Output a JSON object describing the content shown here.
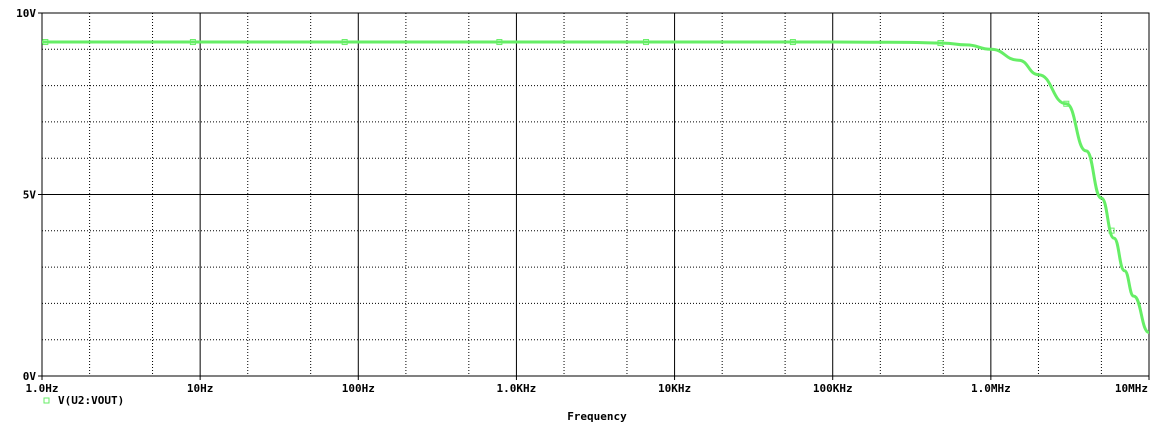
{
  "chart_data": {
    "type": "line",
    "x_scale": "log",
    "xlabel": "Frequency",
    "ylabel": "",
    "xlim": [
      1,
      10000000
    ],
    "ylim": [
      0,
      10
    ],
    "x_ticks": [
      {
        "value": 1,
        "label": "1.0Hz"
      },
      {
        "value": 10,
        "label": "10Hz"
      },
      {
        "value": 100,
        "label": "100Hz"
      },
      {
        "value": 1000,
        "label": "1.0KHz"
      },
      {
        "value": 10000,
        "label": "10KHz"
      },
      {
        "value": 100000,
        "label": "100KHz"
      },
      {
        "value": 1000000,
        "label": "1.0MHz"
      },
      {
        "value": 10000000,
        "label": "10MHz"
      }
    ],
    "y_ticks": [
      {
        "value": 0,
        "label": "0V"
      },
      {
        "value": 5,
        "label": "5V"
      },
      {
        "value": 10,
        "label": "10V"
      }
    ],
    "grid": true,
    "legend_position": "bottom-left",
    "series": [
      {
        "name": "V(U2:VOUT)",
        "color": "#66ee66",
        "x": [
          1,
          10,
          100,
          1000,
          10000,
          100000,
          300000,
          500000,
          700000,
          1000000,
          1500000,
          2000000,
          3000000,
          4000000,
          5000000,
          6000000,
          7000000,
          8000000,
          10000000
        ],
        "y": [
          9.2,
          9.2,
          9.2,
          9.2,
          9.2,
          9.2,
          9.19,
          9.17,
          9.12,
          9.0,
          8.7,
          8.3,
          7.5,
          6.2,
          4.9,
          3.8,
          2.9,
          2.2,
          1.2
        ],
        "markers_x": [
          1.05,
          9.0,
          82,
          780,
          6600,
          56000,
          480000,
          3000000,
          5800000
        ]
      }
    ]
  }
}
